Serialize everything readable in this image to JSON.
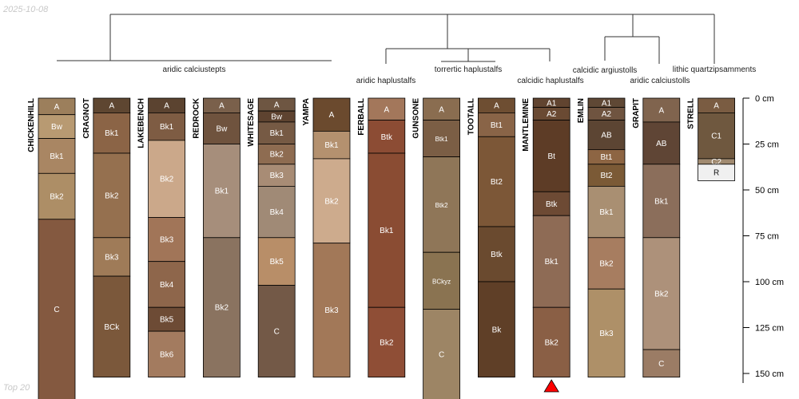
{
  "header": {
    "date": "2025-10-08"
  },
  "footer": {
    "label": "Top 20"
  },
  "depth_axis": {
    "unit": "cm",
    "ticks": [
      0,
      25,
      50,
      75,
      100,
      125,
      150
    ],
    "labels": [
      "0 cm",
      "25 cm",
      "50 cm",
      "75 cm",
      "100 cm",
      "125 cm",
      "150 cm"
    ]
  },
  "group_labels": [
    "aridic calciustepts",
    "aridic haplustalfs",
    "torrertic haplustalfs",
    "calcidic haplustalfs",
    "calcidic argiustolls",
    "aridic calciustolls",
    "lithic quartzipsamments"
  ],
  "truncation_marker": {
    "profile": "MANTLEMINE",
    "color": "#ff0000"
  },
  "profiles": [
    {
      "name": "CHICKENHILL",
      "horizons": [
        {
          "label": "A",
          "top": 0,
          "bottom": 9,
          "color": "#9c7f5c"
        },
        {
          "label": "Bw",
          "top": 9,
          "bottom": 22,
          "color": "#b89a72"
        },
        {
          "label": "Bk1",
          "top": 22,
          "bottom": 41,
          "color": "#a98663"
        },
        {
          "label": "Bk2",
          "top": 41,
          "bottom": 66,
          "color": "#ad8e66"
        },
        {
          "label": "C",
          "top": 66,
          "bottom": 175,
          "color": "#845940"
        }
      ]
    },
    {
      "name": "CRAGNOT",
      "horizons": [
        {
          "label": "A",
          "top": 0,
          "bottom": 8,
          "color": "#5e4631"
        },
        {
          "label": "Bk1",
          "top": 8,
          "bottom": 30,
          "color": "#8b6446"
        },
        {
          "label": "Bk2",
          "top": 30,
          "bottom": 76,
          "color": "#95704f"
        },
        {
          "label": "Bk3",
          "top": 76,
          "bottom": 97,
          "color": "#9f7b58"
        },
        {
          "label": "BCk",
          "top": 97,
          "bottom": 152,
          "color": "#7b583b"
        }
      ]
    },
    {
      "name": "LAKEBENCH",
      "horizons": [
        {
          "label": "A",
          "top": 0,
          "bottom": 8,
          "color": "#5b4330"
        },
        {
          "label": "Bk1",
          "top": 8,
          "bottom": 23,
          "color": "#7e5c43"
        },
        {
          "label": "Bk2",
          "top": 23,
          "bottom": 65,
          "color": "#cba88a"
        },
        {
          "label": "Bk3",
          "top": 65,
          "bottom": 89,
          "color": "#a17558"
        },
        {
          "label": "Bk4",
          "top": 89,
          "bottom": 114,
          "color": "#8e664b"
        },
        {
          "label": "Bk5",
          "top": 114,
          "bottom": 127,
          "color": "#6d4b35"
        },
        {
          "label": "Bk6",
          "top": 127,
          "bottom": 152,
          "color": "#a37b5f"
        }
      ]
    },
    {
      "name": "REDROCK",
      "horizons": [
        {
          "label": "A",
          "top": 0,
          "bottom": 8,
          "color": "#7a604b"
        },
        {
          "label": "Bw",
          "top": 8,
          "bottom": 25,
          "color": "#6f533e"
        },
        {
          "label": "Bk1",
          "top": 25,
          "bottom": 76,
          "color": "#a68e7b"
        },
        {
          "label": "Bk2",
          "top": 76,
          "bottom": 152,
          "color": "#8a7360"
        }
      ]
    },
    {
      "name": "WHITESAGE",
      "horizons": [
        {
          "label": "A",
          "top": 0,
          "bottom": 7,
          "color": "#6e5642"
        },
        {
          "label": "Bw",
          "top": 7,
          "bottom": 13,
          "color": "#5e4330"
        },
        {
          "label": "Bk1",
          "top": 13,
          "bottom": 25,
          "color": "#765a44"
        },
        {
          "label": "Bk2",
          "top": 25,
          "bottom": 36,
          "color": "#8e6c51"
        },
        {
          "label": "Bk3",
          "top": 36,
          "bottom": 48,
          "color": "#a88c75"
        },
        {
          "label": "Bk4",
          "top": 48,
          "bottom": 76,
          "color": "#a08a76"
        },
        {
          "label": "Bk5",
          "top": 76,
          "bottom": 102,
          "color": "#b88e68"
        },
        {
          "label": "C",
          "top": 102,
          "bottom": 152,
          "color": "#735947"
        }
      ]
    },
    {
      "name": "YAMPA",
      "horizons": [
        {
          "label": "A",
          "top": 0,
          "bottom": 18,
          "color": "#6b4a2e"
        },
        {
          "label": "Bk1",
          "top": 18,
          "bottom": 33,
          "color": "#b4916f"
        },
        {
          "label": "Bk2",
          "top": 33,
          "bottom": 79,
          "color": "#cdab8d"
        },
        {
          "label": "Bk3",
          "top": 79,
          "bottom": 152,
          "color": "#a27858"
        }
      ]
    },
    {
      "name": "FERBALL",
      "horizons": [
        {
          "label": "A",
          "top": 0,
          "bottom": 12,
          "color": "#a3775b"
        },
        {
          "label": "Btk",
          "top": 12,
          "bottom": 30,
          "color": "#8c4c34"
        },
        {
          "label": "Bk1",
          "top": 30,
          "bottom": 114,
          "color": "#8a4c33"
        },
        {
          "label": "Bk2",
          "top": 114,
          "bottom": 152,
          "color": "#8f4e36"
        }
      ]
    },
    {
      "name": "GUNSONE",
      "horizons": [
        {
          "label": "A",
          "top": 0,
          "bottom": 12,
          "color": "#8a6d50"
        },
        {
          "label": "Btk1",
          "top": 12,
          "bottom": 32,
          "color": "#7b5e45"
        },
        {
          "label": "Btk2",
          "top": 32,
          "bottom": 84,
          "color": "#8f7658"
        },
        {
          "label": "BCkyz",
          "top": 84,
          "bottom": 115,
          "color": "#8a7351"
        },
        {
          "label": "C",
          "top": 115,
          "bottom": 175,
          "color": "#9d8565"
        }
      ]
    },
    {
      "name": "TOOTALL",
      "horizons": [
        {
          "label": "A",
          "top": 0,
          "bottom": 8,
          "color": "#6e4e32"
        },
        {
          "label": "Bt1",
          "top": 8,
          "bottom": 21,
          "color": "#896447"
        },
        {
          "label": "Bt2",
          "top": 21,
          "bottom": 70,
          "color": "#7c5737"
        },
        {
          "label": "Btk",
          "top": 70,
          "bottom": 100,
          "color": "#6a4a2f"
        },
        {
          "label": "Bk",
          "top": 100,
          "bottom": 152,
          "color": "#5f3f27"
        }
      ]
    },
    {
      "name": "MANTLEMINE",
      "horizons": [
        {
          "label": "A1",
          "top": 0,
          "bottom": 5,
          "color": "#614430"
        },
        {
          "label": "A2",
          "top": 5,
          "bottom": 12,
          "color": "#6a4a33"
        },
        {
          "label": "Bt",
          "top": 12,
          "bottom": 51,
          "color": "#5d3c26"
        },
        {
          "label": "Btk",
          "top": 51,
          "bottom": 64,
          "color": "#6d4a34"
        },
        {
          "label": "Bk1",
          "top": 64,
          "bottom": 114,
          "color": "#8e6b55"
        },
        {
          "label": "Bk2",
          "top": 114,
          "bottom": 152,
          "color": "#8a5f45"
        }
      ]
    },
    {
      "name": "EMLIN",
      "horizons": [
        {
          "label": "A1",
          "top": 0,
          "bottom": 5,
          "color": "#5f4835"
        },
        {
          "label": "A2",
          "top": 5,
          "bottom": 12,
          "color": "#6f5440"
        },
        {
          "label": "AB",
          "top": 12,
          "bottom": 28,
          "color": "#5c4533"
        },
        {
          "label": "Bt1",
          "top": 28,
          "bottom": 36,
          "color": "#8d6543"
        },
        {
          "label": "Bt2",
          "top": 36,
          "bottom": 48,
          "color": "#7b5a36"
        },
        {
          "label": "Bk1",
          "top": 48,
          "bottom": 76,
          "color": "#a98f72"
        },
        {
          "label": "Bk2",
          "top": 76,
          "bottom": 104,
          "color": "#a77d60"
        },
        {
          "label": "Bk3",
          "top": 104,
          "bottom": 152,
          "color": "#ae9068"
        }
      ]
    },
    {
      "name": "GRAPIT",
      "horizons": [
        {
          "label": "A",
          "top": 0,
          "bottom": 13,
          "color": "#80644e"
        },
        {
          "label": "AB",
          "top": 13,
          "bottom": 36,
          "color": "#5f4535"
        },
        {
          "label": "Bk1",
          "top": 36,
          "bottom": 76,
          "color": "#8b6e5b"
        },
        {
          "label": "Bk2",
          "top": 76,
          "bottom": 137,
          "color": "#ad917a"
        },
        {
          "label": "C",
          "top": 137,
          "bottom": 152,
          "color": "#9b7c65"
        }
      ]
    },
    {
      "name": "STRELL",
      "horizons": [
        {
          "label": "A",
          "top": 0,
          "bottom": 8,
          "color": "#7a5c42"
        },
        {
          "label": "C1",
          "top": 8,
          "bottom": 33,
          "color": "#6f583f"
        },
        {
          "label": "C2",
          "top": 33,
          "bottom": 36,
          "color": "#a08a70"
        },
        {
          "label": "R",
          "top": 36,
          "bottom": 45,
          "color": "#f0f0f0"
        }
      ]
    }
  ]
}
